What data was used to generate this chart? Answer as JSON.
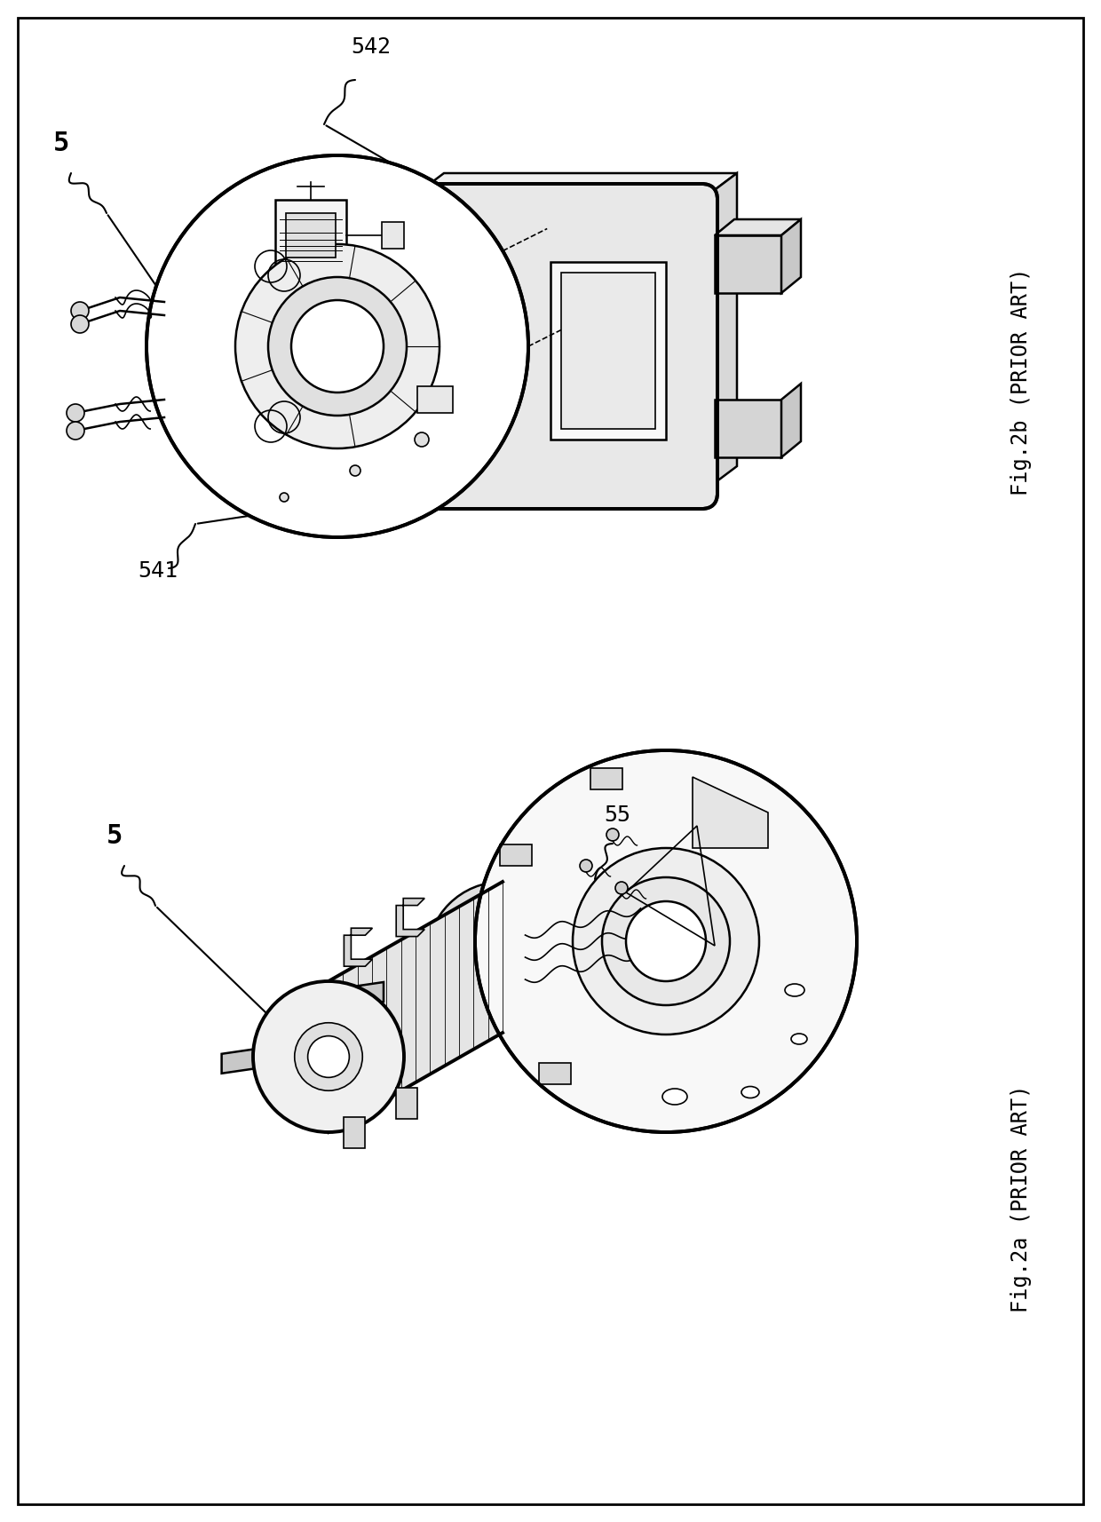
{
  "background_color": "#ffffff",
  "fig_width": 12.4,
  "fig_height": 17.14,
  "dpi": 100,
  "title_2b": "Fig.2b (PRIOR ART)",
  "title_2a": "Fig.2a (PRIOR ART)",
  "label_5_top": "5",
  "label_542": "542",
  "label_541": "541",
  "label_5_bottom": "5",
  "label_55": "55",
  "line_color": "#000000",
  "text_color": "#000000",
  "font_size_labels": 18,
  "font_size_captions": 17,
  "border_color": "#000000"
}
